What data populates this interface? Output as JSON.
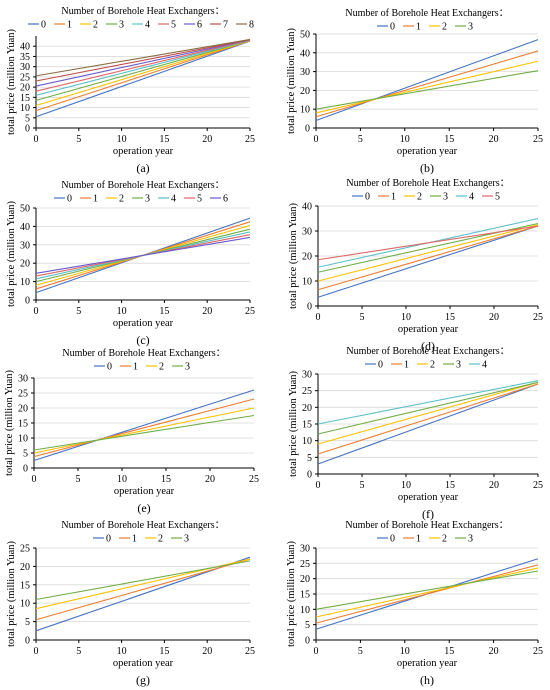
{
  "colors": {
    "0": "#4472C4",
    "1": "#ED7D31",
    "2": "#FFC000",
    "3": "#70AD47",
    "4": "#5BC0C8",
    "5": "#E06666",
    "6": "#6A5ACD",
    "7": "#C0504D",
    "8": "#8B6C42"
  },
  "chart_data": [
    {
      "type": "line",
      "panel_label": "(a)",
      "legend_title": "Number of Borehole Heat Exchangers：",
      "xlabel": "operation year",
      "ylabel": "total price (million Yuan)",
      "xlim": [
        0,
        25
      ],
      "ylim": [
        0,
        45
      ],
      "xticks": [
        0,
        5,
        10,
        15,
        20,
        25
      ],
      "yticks": [
        0,
        5,
        10,
        15,
        20,
        25,
        30,
        35,
        40
      ],
      "series": [
        {
          "name": "0",
          "x": [
            0,
            25
          ],
          "y": [
            5.5,
            42.5
          ]
        },
        {
          "name": "1",
          "x": [
            0,
            25
          ],
          "y": [
            8.5,
            42.6
          ]
        },
        {
          "name": "2",
          "x": [
            0,
            25
          ],
          "y": [
            11.0,
            42.7
          ]
        },
        {
          "name": "3",
          "x": [
            0,
            25
          ],
          "y": [
            13.5,
            42.8
          ]
        },
        {
          "name": "4",
          "x": [
            0,
            25
          ],
          "y": [
            16.0,
            42.9
          ]
        },
        {
          "name": "5",
          "x": [
            0,
            25
          ],
          "y": [
            18.0,
            43.0
          ]
        },
        {
          "name": "6",
          "x": [
            0,
            25
          ],
          "y": [
            20.5,
            43.1
          ]
        },
        {
          "name": "7",
          "x": [
            0,
            25
          ],
          "y": [
            23.0,
            43.2
          ]
        },
        {
          "name": "8",
          "x": [
            0,
            25
          ],
          "y": [
            25.5,
            43.3
          ]
        }
      ]
    },
    {
      "type": "line",
      "panel_label": "(b)",
      "legend_title": "Number of Borehole Heat Exchangers：",
      "xlabel": "operation year",
      "ylabel": "total price (million Yuan)",
      "xlim": [
        0,
        25
      ],
      "ylim": [
        0,
        50
      ],
      "xticks": [
        0,
        5,
        10,
        15,
        20,
        25
      ],
      "yticks": [
        0,
        10,
        20,
        30,
        40,
        50
      ],
      "series": [
        {
          "name": "0",
          "x": [
            0,
            25
          ],
          "y": [
            4.0,
            47.0
          ]
        },
        {
          "name": "1",
          "x": [
            0,
            25
          ],
          "y": [
            6.0,
            41.0
          ]
        },
        {
          "name": "2",
          "x": [
            0,
            25
          ],
          "y": [
            8.0,
            35.5
          ]
        },
        {
          "name": "3",
          "x": [
            0,
            25
          ],
          "y": [
            10.0,
            30.5
          ]
        }
      ]
    },
    {
      "type": "line",
      "panel_label": "(c)",
      "legend_title": "Number of Borehole Heat Exchangers：",
      "xlabel": "operation year",
      "ylabel": "total price (million Yuan)",
      "xlim": [
        0,
        25
      ],
      "ylim": [
        0,
        50
      ],
      "xticks": [
        0,
        5,
        10,
        15,
        20,
        25
      ],
      "yticks": [
        0,
        10,
        20,
        30,
        40,
        50
      ],
      "series": [
        {
          "name": "0",
          "x": [
            0,
            25
          ],
          "y": [
            4.0,
            44.5
          ]
        },
        {
          "name": "1",
          "x": [
            0,
            25
          ],
          "y": [
            6.0,
            42.5
          ]
        },
        {
          "name": "2",
          "x": [
            0,
            25
          ],
          "y": [
            8.0,
            40.5
          ]
        },
        {
          "name": "3",
          "x": [
            0,
            25
          ],
          "y": [
            10.0,
            38.5
          ]
        },
        {
          "name": "4",
          "x": [
            0,
            25
          ],
          "y": [
            11.5,
            37.0
          ]
        },
        {
          "name": "5",
          "x": [
            0,
            25
          ],
          "y": [
            13.0,
            35.5
          ]
        },
        {
          "name": "6",
          "x": [
            0,
            25
          ],
          "y": [
            14.5,
            34.0
          ]
        }
      ]
    },
    {
      "type": "line",
      "panel_label": "(d)",
      "legend_title": "Number of Borehole Heat Exchangers：",
      "xlabel": "operation year",
      "ylabel": "total price (million Yuan)",
      "xlim": [
        0,
        25
      ],
      "ylim": [
        0,
        40
      ],
      "xticks": [
        0,
        5,
        10,
        15,
        20,
        25
      ],
      "yticks": [
        0,
        10,
        20,
        30,
        40
      ],
      "series": [
        {
          "name": "0",
          "x": [
            0,
            25
          ],
          "y": [
            3.5,
            32.0
          ]
        },
        {
          "name": "1",
          "x": [
            0,
            25
          ],
          "y": [
            6.5,
            32.0
          ]
        },
        {
          "name": "2",
          "x": [
            0,
            25
          ],
          "y": [
            10.0,
            32.5
          ]
        },
        {
          "name": "3",
          "x": [
            0,
            25
          ],
          "y": [
            13.5,
            33.0
          ]
        },
        {
          "name": "4",
          "x": [
            0,
            25
          ],
          "y": [
            15.5,
            35.0
          ]
        },
        {
          "name": "5",
          "x": [
            0,
            25
          ],
          "y": [
            18.5,
            32.0
          ]
        }
      ]
    },
    {
      "type": "line",
      "panel_label": "(e)",
      "legend_title": "Number of Borehole Heat Exchangers：",
      "xlabel": "operation year",
      "ylabel": "total price (million Yuan)",
      "xlim": [
        0,
        25
      ],
      "ylim": [
        0,
        30
      ],
      "xticks": [
        0,
        5,
        10,
        15,
        20,
        25
      ],
      "yticks": [
        0,
        5,
        10,
        15,
        20,
        25,
        30
      ],
      "series": [
        {
          "name": "0",
          "x": [
            0,
            25
          ],
          "y": [
            2.5,
            26.0
          ]
        },
        {
          "name": "1",
          "x": [
            0,
            25
          ],
          "y": [
            3.8,
            23.0
          ]
        },
        {
          "name": "2",
          "x": [
            0,
            25
          ],
          "y": [
            5.0,
            20.0
          ]
        },
        {
          "name": "3",
          "x": [
            0,
            25
          ],
          "y": [
            6.0,
            17.5
          ]
        }
      ]
    },
    {
      "type": "line",
      "panel_label": "(f)",
      "legend_title": "Number of Borehole Heat Exchangers：",
      "xlabel": "operation year",
      "ylabel": "total price (million Yuan)",
      "xlim": [
        0,
        25
      ],
      "ylim": [
        0,
        30
      ],
      "xticks": [
        0,
        5,
        10,
        15,
        20,
        25
      ],
      "yticks": [
        0,
        5,
        10,
        15,
        20,
        25,
        30
      ],
      "series": [
        {
          "name": "0",
          "x": [
            0,
            25
          ],
          "y": [
            3.0,
            27.0
          ]
        },
        {
          "name": "1",
          "x": [
            0,
            25
          ],
          "y": [
            6.0,
            27.0
          ]
        },
        {
          "name": "2",
          "x": [
            0,
            25
          ],
          "y": [
            9.0,
            27.5
          ]
        },
        {
          "name": "3",
          "x": [
            0,
            25
          ],
          "y": [
            12.0,
            27.5
          ]
        },
        {
          "name": "4",
          "x": [
            0,
            25
          ],
          "y": [
            15.0,
            28.0
          ]
        }
      ]
    },
    {
      "type": "line",
      "panel_label": "(g)",
      "legend_title": "Number of Borehole Heat Exchangers：",
      "xlabel": "operation year",
      "ylabel": "total price (million Yuan)",
      "xlim": [
        0,
        25
      ],
      "ylim": [
        0,
        25
      ],
      "xticks": [
        0,
        5,
        10,
        15,
        20,
        25
      ],
      "yticks": [
        0,
        5,
        10,
        15,
        20,
        25
      ],
      "series": [
        {
          "name": "0",
          "x": [
            0,
            25
          ],
          "y": [
            2.5,
            22.5
          ]
        },
        {
          "name": "1",
          "x": [
            0,
            25
          ],
          "y": [
            5.5,
            22.0
          ]
        },
        {
          "name": "2",
          "x": [
            0,
            25
          ],
          "y": [
            8.5,
            22.0
          ]
        },
        {
          "name": "3",
          "x": [
            0,
            25
          ],
          "y": [
            11.0,
            21.5
          ]
        }
      ]
    },
    {
      "type": "line",
      "panel_label": "(h)",
      "legend_title": "Number of Borehole Heat Exchangers：",
      "xlabel": "operation year",
      "ylabel": "total price (million Yuan)",
      "xlim": [
        0,
        25
      ],
      "ylim": [
        0,
        30
      ],
      "xticks": [
        0,
        5,
        10,
        15,
        20,
        25
      ],
      "yticks": [
        0,
        5,
        10,
        15,
        20,
        25,
        30
      ],
      "series": [
        {
          "name": "0",
          "x": [
            0,
            25
          ],
          "y": [
            3.5,
            26.5
          ]
        },
        {
          "name": "1",
          "x": [
            0,
            25
          ],
          "y": [
            5.5,
            24.5
          ]
        },
        {
          "name": "2",
          "x": [
            0,
            25
          ],
          "y": [
            7.5,
            23.5
          ]
        },
        {
          "name": "3",
          "x": [
            0,
            25
          ],
          "y": [
            10.0,
            22.5
          ]
        }
      ]
    }
  ]
}
